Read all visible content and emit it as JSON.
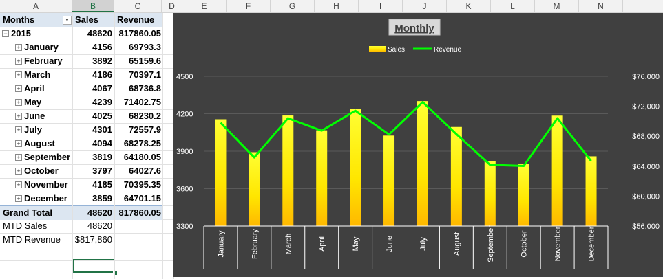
{
  "column_headers": [
    "A",
    "B",
    "C",
    "D",
    "E",
    "F",
    "G",
    "H",
    "I",
    "J",
    "K",
    "L",
    "M",
    "N"
  ],
  "selected_column": "B",
  "pivot": {
    "headers": {
      "months": "Months",
      "sales": "Sales",
      "revenue": "Revenue"
    },
    "year": {
      "label": "2015",
      "sales": "48620",
      "revenue": "817860.05"
    },
    "months": [
      {
        "label": "January",
        "sales": "4156",
        "revenue": "69793.3"
      },
      {
        "label": "February",
        "sales": "3892",
        "revenue": "65159.6"
      },
      {
        "label": "March",
        "sales": "4186",
        "revenue": "70397.1"
      },
      {
        "label": "April",
        "sales": "4067",
        "revenue": "68736.8"
      },
      {
        "label": "May",
        "sales": "4239",
        "revenue": "71402.75"
      },
      {
        "label": "June",
        "sales": "4025",
        "revenue": "68230.2"
      },
      {
        "label": "July",
        "sales": "4301",
        "revenue": "72557.9"
      },
      {
        "label": "August",
        "sales": "4094",
        "revenue": "68278.25"
      },
      {
        "label": "September",
        "sales": "3819",
        "revenue": "64180.05"
      },
      {
        "label": "October",
        "sales": "3797",
        "revenue": "64027.6"
      },
      {
        "label": "November",
        "sales": "4185",
        "revenue": "70395.35"
      },
      {
        "label": "December",
        "sales": "3859",
        "revenue": "64701.15"
      }
    ],
    "grand_total": {
      "label": "Grand Total",
      "sales": "48620",
      "revenue": "817860.05"
    },
    "mtd_sales": {
      "label": "MTD Sales",
      "value": "48620"
    },
    "mtd_revenue": {
      "label": "MTD Revenue",
      "value": "$817,860"
    }
  },
  "chart_data": {
    "type": "bar",
    "title": "Monthly",
    "categories": [
      "January",
      "February",
      "March",
      "April",
      "May",
      "June",
      "July",
      "August",
      "September",
      "October",
      "November",
      "December"
    ],
    "series": [
      {
        "name": "Sales",
        "type": "bar",
        "axis": "left",
        "color": "#ffd700",
        "values": [
          4156,
          3892,
          4186,
          4067,
          4239,
          4025,
          4301,
          4094,
          3819,
          3797,
          4185,
          3859
        ]
      },
      {
        "name": "Revenue",
        "type": "line",
        "axis": "right",
        "color": "#00ff00",
        "values": [
          69793.3,
          65159.6,
          70397.1,
          68736.8,
          71402.75,
          68230.2,
          72557.9,
          68278.25,
          64180.05,
          64027.6,
          70395.35,
          64701.15
        ]
      }
    ],
    "y_left": {
      "min": 3300,
      "max": 4500,
      "ticks": [
        "4500",
        "4200",
        "3900",
        "3600",
        "3300"
      ],
      "tick_values": [
        4500,
        4200,
        3900,
        3600,
        3300
      ]
    },
    "y_right": {
      "min": 56000,
      "max": 76000,
      "ticks": [
        "$76,000",
        "$72,000",
        "$68,000",
        "$64,000",
        "$60,000",
        "$56,000"
      ],
      "tick_values": [
        76000,
        72000,
        68000,
        64000,
        60000,
        56000
      ]
    },
    "legend_position": "top",
    "background": "#404040"
  }
}
